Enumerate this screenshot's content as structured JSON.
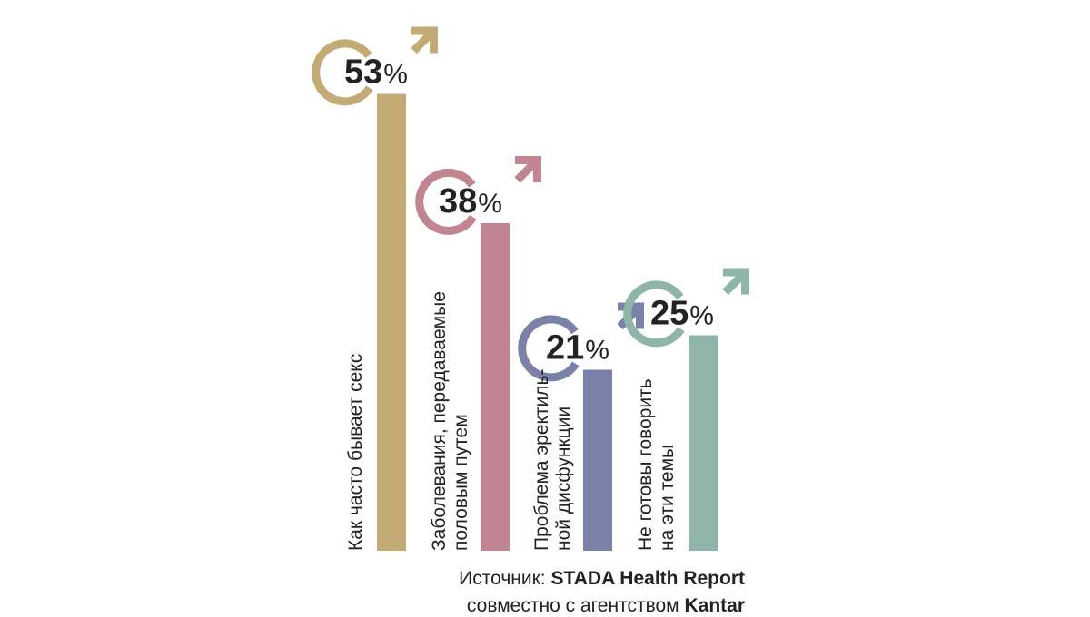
{
  "chart_data": {
    "type": "bar",
    "categories": [
      [
        "Как часто бывает секс"
      ],
      [
        "Заболевания, передаваемые",
        "половым путем"
      ],
      [
        "Проблема эректиль-",
        "ной дисфункции"
      ],
      [
        "Не готовы говорить",
        "на эти темы"
      ]
    ],
    "values": [
      53,
      38,
      21,
      25
    ],
    "value_labels": [
      "53",
      "38",
      "21",
      "25"
    ],
    "unit": "%",
    "colors": [
      "#c3ab76",
      "#c08591",
      "#7b82a9",
      "#8fb4aa"
    ],
    "icon": "male-symbol-icon",
    "ylim": [
      0,
      100
    ]
  },
  "source": {
    "line1_prefix": "Источник:",
    "line1_bold": "STADA Health Report",
    "line2_prefix": "совместно с агентством",
    "line2_bold": "Kantar"
  }
}
